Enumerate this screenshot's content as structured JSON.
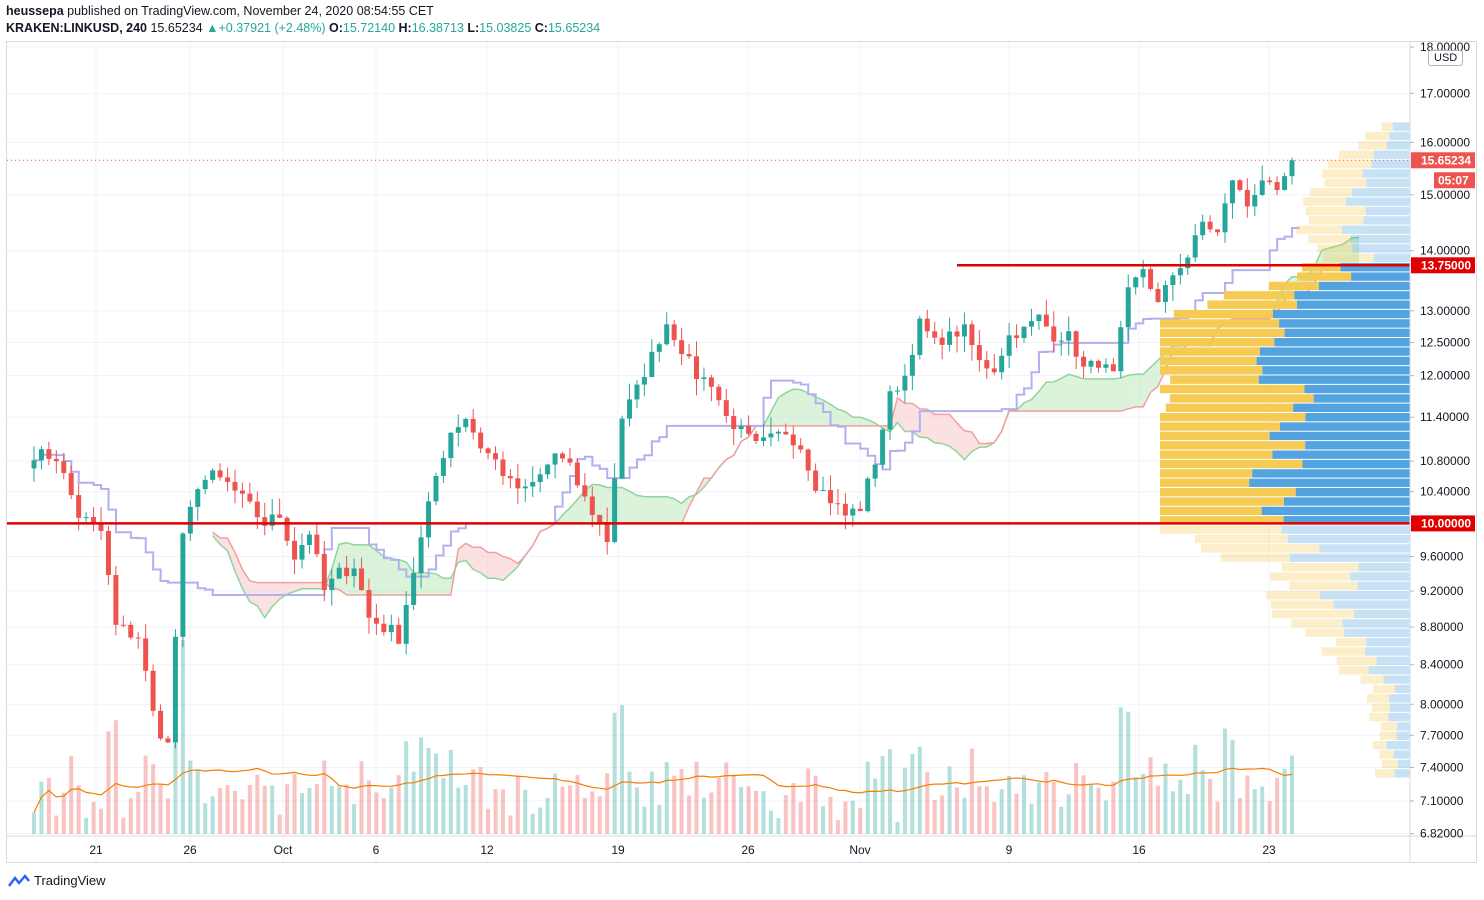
{
  "header": {
    "publisher_name": "heussepa",
    "published_text": "published on TradingView.com, November 24, 2020 08:54:55 CET",
    "symbol": "KRAKEN:LINKUSD, 240",
    "last": "15.65234",
    "change": "+0.37921 (+2.48%)",
    "open_label": "O:",
    "open": "15.72140",
    "high_label": "H:",
    "high": "16.38713",
    "low_label": "L:",
    "low": "15.03825",
    "close_label": "C:",
    "close": "15.65234"
  },
  "currency": "USD",
  "footer": {
    "brand": "TradingView"
  },
  "colors": {
    "up": "#26a69a",
    "down": "#ef5350",
    "ma": "#f57c00",
    "kijun": "#b2b0f0",
    "cloud_up": "#bde7be",
    "cloud_down": "#f8c8c8",
    "vp_up": "#4a9edf",
    "vp_down": "#f5c84c",
    "level": "#e00000"
  },
  "chart_data": {
    "type": "candlestick",
    "symbol": "KRAKEN:LINKUSD",
    "interval": "240",
    "y_scale": "log",
    "ylim": [
      6.8,
      18.0
    ],
    "y_ticks": [
      "18.00000",
      "17.00000",
      "16.00000",
      "15.00000",
      "14.00000",
      "13.00000",
      "12.50000",
      "12.00000",
      "11.40000",
      "10.80000",
      "10.40000",
      "9.60000",
      "9.20000",
      "8.80000",
      "8.40000",
      "8.00000",
      "7.70000",
      "7.40000",
      "7.10000",
      "6.82000"
    ],
    "x_ticks": [
      "21",
      "26",
      "Oct",
      "6",
      "12",
      "19",
      "26",
      "Nov",
      "9",
      "16",
      "23"
    ],
    "close_path": [
      [
        0,
        10.9
      ],
      [
        3,
        10.85
      ],
      [
        6,
        10.1
      ],
      [
        9,
        9.9
      ],
      [
        11,
        8.8
      ],
      [
        14,
        8.7
      ],
      [
        16,
        7.9
      ],
      [
        18,
        7.6
      ],
      [
        20,
        9.8
      ],
      [
        22,
        10.5
      ],
      [
        24,
        10.6
      ],
      [
        26,
        10.5
      ],
      [
        29,
        10.2
      ],
      [
        31,
        10.0
      ],
      [
        33,
        10.1
      ],
      [
        35,
        9.6
      ],
      [
        37,
        9.9
      ],
      [
        39,
        9.2
      ],
      [
        41,
        9.4
      ],
      [
        43,
        9.5
      ],
      [
        45,
        8.9
      ],
      [
        47,
        8.8
      ],
      [
        49,
        8.7
      ],
      [
        52,
        9.8
      ],
      [
        54,
        10.6
      ],
      [
        56,
        11.2
      ],
      [
        58,
        11.4
      ],
      [
        60,
        11.0
      ],
      [
        62,
        10.8
      ],
      [
        64,
        10.5
      ],
      [
        66,
        10.4
      ],
      [
        68,
        10.6
      ],
      [
        70,
        10.9
      ],
      [
        72,
        10.7
      ],
      [
        74,
        10.3
      ],
      [
        76,
        10.0
      ],
      [
        77,
        9.8
      ],
      [
        79,
        11.4
      ],
      [
        81,
        11.8
      ],
      [
        83,
        12.3
      ],
      [
        85,
        12.8
      ],
      [
        87,
        12.4
      ],
      [
        89,
        12.0
      ],
      [
        91,
        11.9
      ],
      [
        93,
        11.4
      ],
      [
        95,
        11.2
      ],
      [
        97,
        11.0
      ],
      [
        99,
        11.1
      ],
      [
        101,
        11.2
      ],
      [
        103,
        11.0
      ],
      [
        105,
        10.5
      ],
      [
        107,
        10.3
      ],
      [
        109,
        10.1
      ],
      [
        111,
        10.2
      ],
      [
        113,
        10.8
      ],
      [
        115,
        11.7
      ],
      [
        117,
        12.0
      ],
      [
        119,
        12.8
      ],
      [
        121,
        12.5
      ],
      [
        123,
        12.6
      ],
      [
        125,
        12.7
      ],
      [
        127,
        12.2
      ],
      [
        129,
        12.1
      ],
      [
        131,
        12.6
      ],
      [
        133,
        12.7
      ],
      [
        135,
        12.9
      ],
      [
        137,
        12.6
      ],
      [
        139,
        12.6
      ],
      [
        141,
        12.1
      ],
      [
        143,
        12.2
      ],
      [
        145,
        12.0
      ],
      [
        147,
        13.3
      ],
      [
        149,
        13.7
      ],
      [
        151,
        13.1
      ],
      [
        153,
        13.6
      ],
      [
        155,
        13.9
      ],
      [
        157,
        14.5
      ],
      [
        159,
        14.3
      ],
      [
        161,
        15.3
      ],
      [
        163,
        14.8
      ],
      [
        165,
        15.3
      ],
      [
        167,
        15.0
      ],
      [
        169,
        15.65
      ]
    ],
    "horizontal_levels": [
      13.75,
      10.0
    ],
    "volume_ma_visible": true,
    "volume_profile_visible": true,
    "ichimoku_cloud_visible": true,
    "last_price_label": "15.65234",
    "countdown_label": "05:07",
    "level_labels": [
      "13.75000",
      "10.00000"
    ],
    "grid": true
  }
}
